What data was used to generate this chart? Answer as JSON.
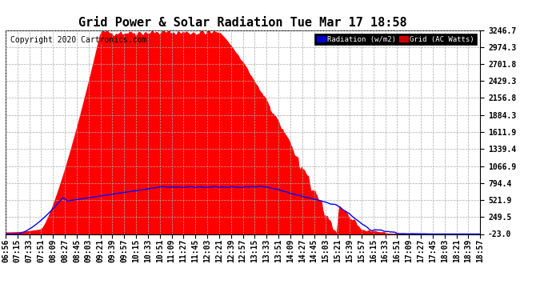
{
  "title": "Grid Power & Solar Radiation Tue Mar 17 18:58",
  "copyright": "Copyright 2020 Cartronics.com",
  "yticks": [
    3246.7,
    2974.3,
    2701.8,
    2429.3,
    2156.8,
    1884.3,
    1611.9,
    1339.4,
    1066.9,
    794.4,
    521.9,
    249.5,
    -23.0
  ],
  "ymin": -23.0,
  "ymax": 3246.7,
  "legend_radiation_label": "Radiation (w/m2)",
  "legend_grid_label": "Grid (AC Watts)",
  "fill_color": "#ff0000",
  "line_color": "#0000ff",
  "bg_color": "#ffffff",
  "grid_color": "#aaaaaa",
  "title_fontsize": 11,
  "copyright_fontsize": 7,
  "tick_fontsize": 7,
  "xtick_labels": [
    "06:56",
    "07:15",
    "07:33",
    "07:51",
    "08:09",
    "08:27",
    "08:45",
    "09:03",
    "09:21",
    "09:39",
    "09:57",
    "10:15",
    "10:33",
    "10:51",
    "11:09",
    "11:27",
    "11:45",
    "12:03",
    "12:21",
    "12:39",
    "12:57",
    "13:15",
    "13:33",
    "13:51",
    "14:09",
    "14:27",
    "14:45",
    "15:03",
    "15:21",
    "15:39",
    "15:57",
    "16:15",
    "16:33",
    "16:51",
    "17:09",
    "17:27",
    "17:45",
    "18:03",
    "18:21",
    "18:39",
    "18:57"
  ]
}
